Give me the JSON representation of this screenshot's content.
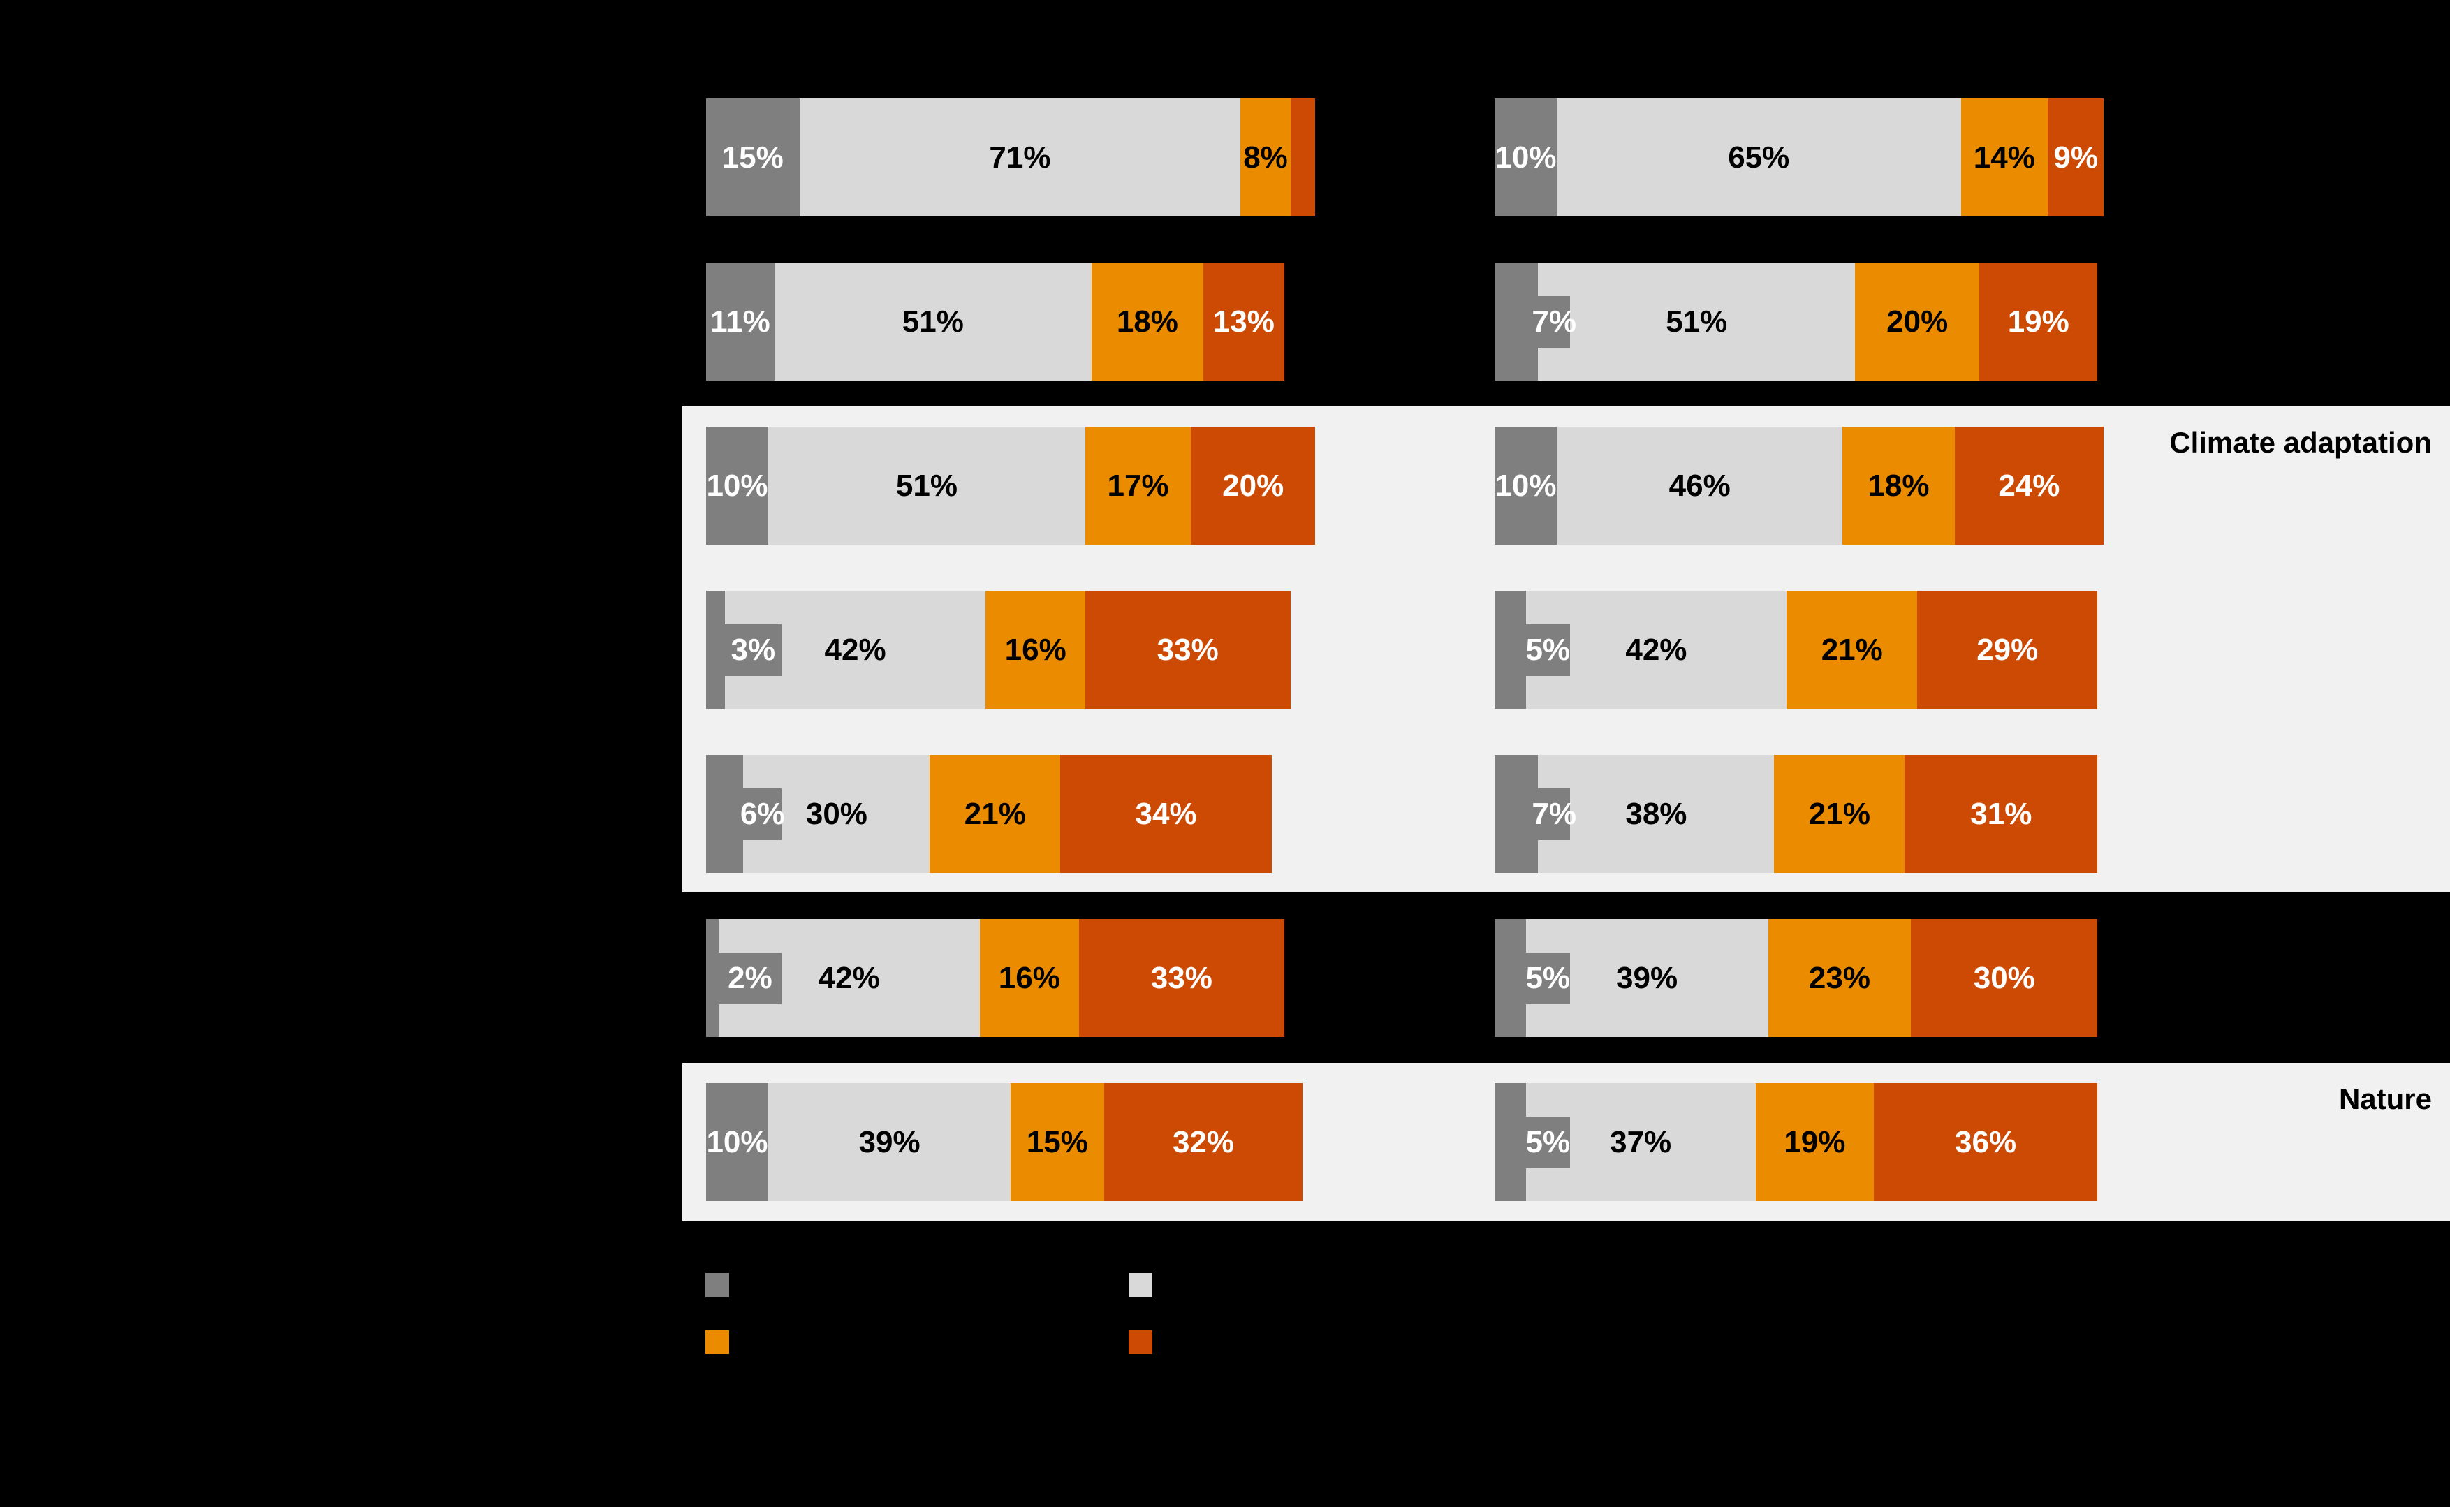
{
  "chart_data": {
    "type": "bar",
    "subtype": "horizontal-stacked, two side-by-side panels, dark background",
    "unit": "%",
    "title": "",
    "colors": {
      "gray": "#7f7f7f",
      "lightgray": "#d9d9d9",
      "orange": "#eb8c00",
      "rust": "#cd4a05",
      "highlight_strip": "#f1f1f1",
      "background": "#000000",
      "label_on_dark": "#ffffff",
      "label_on_light": "#000000"
    },
    "rows": [
      {
        "left": [
          {
            "v": 15,
            "label": "15%",
            "c": "gray"
          },
          {
            "v": 71,
            "label": "71%",
            "c": "lightgray"
          },
          {
            "v": 8,
            "label": "8%",
            "c": "orange"
          },
          {
            "v": 4,
            "label": null,
            "c": "rust"
          }
        ],
        "right": [
          {
            "v": 10,
            "label": "10%",
            "c": "gray"
          },
          {
            "v": 65,
            "label": "65%",
            "c": "lightgray"
          },
          {
            "v": 14,
            "label": "14%",
            "c": "orange"
          },
          {
            "v": 9,
            "label": "9%",
            "c": "rust"
          }
        ]
      },
      {
        "left": [
          {
            "v": 11,
            "label": "11%",
            "c": "gray"
          },
          {
            "v": 51,
            "label": "51%",
            "c": "lightgray"
          },
          {
            "v": 18,
            "label": "18%",
            "c": "orange"
          },
          {
            "v": 13,
            "label": "13%",
            "c": "rust"
          }
        ],
        "right": [
          {
            "v": 7,
            "label": "7%",
            "c": "gray"
          },
          {
            "v": 51,
            "label": "51%",
            "c": "lightgray"
          },
          {
            "v": 20,
            "label": "20%",
            "c": "orange"
          },
          {
            "v": 19,
            "label": "19%",
            "c": "rust"
          }
        ]
      },
      {
        "left": [
          {
            "v": 10,
            "label": "10%",
            "c": "gray"
          },
          {
            "v": 51,
            "label": "51%",
            "c": "lightgray"
          },
          {
            "v": 17,
            "label": "17%",
            "c": "orange"
          },
          {
            "v": 20,
            "label": "20%",
            "c": "rust"
          }
        ],
        "right": [
          {
            "v": 10,
            "label": "10%",
            "c": "gray"
          },
          {
            "v": 46,
            "label": "46%",
            "c": "lightgray"
          },
          {
            "v": 18,
            "label": "18%",
            "c": "orange"
          },
          {
            "v": 24,
            "label": "24%",
            "c": "rust"
          }
        ]
      },
      {
        "left": [
          {
            "v": 3,
            "label": "3%",
            "c": "gray"
          },
          {
            "v": 42,
            "label": "42%",
            "c": "lightgray"
          },
          {
            "v": 16,
            "label": "16%",
            "c": "orange"
          },
          {
            "v": 33,
            "label": "33%",
            "c": "rust"
          }
        ],
        "right": [
          {
            "v": 5,
            "label": "5%",
            "c": "gray"
          },
          {
            "v": 42,
            "label": "42%",
            "c": "lightgray"
          },
          {
            "v": 21,
            "label": "21%",
            "c": "orange"
          },
          {
            "v": 29,
            "label": "29%",
            "c": "rust"
          }
        ]
      },
      {
        "left": [
          {
            "v": 6,
            "label": "6%",
            "c": "gray"
          },
          {
            "v": 30,
            "label": "30%",
            "c": "lightgray"
          },
          {
            "v": 21,
            "label": "21%",
            "c": "orange"
          },
          {
            "v": 34,
            "label": "34%",
            "c": "rust"
          }
        ],
        "right": [
          {
            "v": 7,
            "label": "7%",
            "c": "gray"
          },
          {
            "v": 38,
            "label": "38%",
            "c": "lightgray"
          },
          {
            "v": 21,
            "label": "21%",
            "c": "orange"
          },
          {
            "v": 31,
            "label": "31%",
            "c": "rust"
          }
        ]
      },
      {
        "left": [
          {
            "v": 2,
            "label": "2%",
            "c": "gray"
          },
          {
            "v": 42,
            "label": "42%",
            "c": "lightgray"
          },
          {
            "v": 16,
            "label": "16%",
            "c": "orange"
          },
          {
            "v": 33,
            "label": "33%",
            "c": "rust"
          }
        ],
        "right": [
          {
            "v": 5,
            "label": "5%",
            "c": "gray"
          },
          {
            "v": 39,
            "label": "39%",
            "c": "lightgray"
          },
          {
            "v": 23,
            "label": "23%",
            "c": "orange"
          },
          {
            "v": 30,
            "label": "30%",
            "c": "rust"
          }
        ]
      },
      {
        "left": [
          {
            "v": 10,
            "label": "10%",
            "c": "gray"
          },
          {
            "v": 39,
            "label": "39%",
            "c": "lightgray"
          },
          {
            "v": 15,
            "label": "15%",
            "c": "orange"
          },
          {
            "v": 32,
            "label": "32%",
            "c": "rust"
          }
        ],
        "right": [
          {
            "v": 5,
            "label": "5%",
            "c": "gray"
          },
          {
            "v": 37,
            "label": "37%",
            "c": "lightgray"
          },
          {
            "v": 19,
            "label": "19%",
            "c": "orange"
          },
          {
            "v": 36,
            "label": "36%",
            "c": "rust"
          }
        ]
      }
    ],
    "groups": [
      {
        "label": "Climate adaptation",
        "rows": [
          2,
          4
        ]
      },
      {
        "label": "Nature",
        "rows": [
          6,
          6
        ]
      }
    ],
    "legend": {
      "labels_visible": false,
      "items": [
        {
          "color": "gray"
        },
        {
          "color": "lightgray"
        },
        {
          "color": "orange"
        },
        {
          "color": "rust"
        }
      ]
    }
  }
}
